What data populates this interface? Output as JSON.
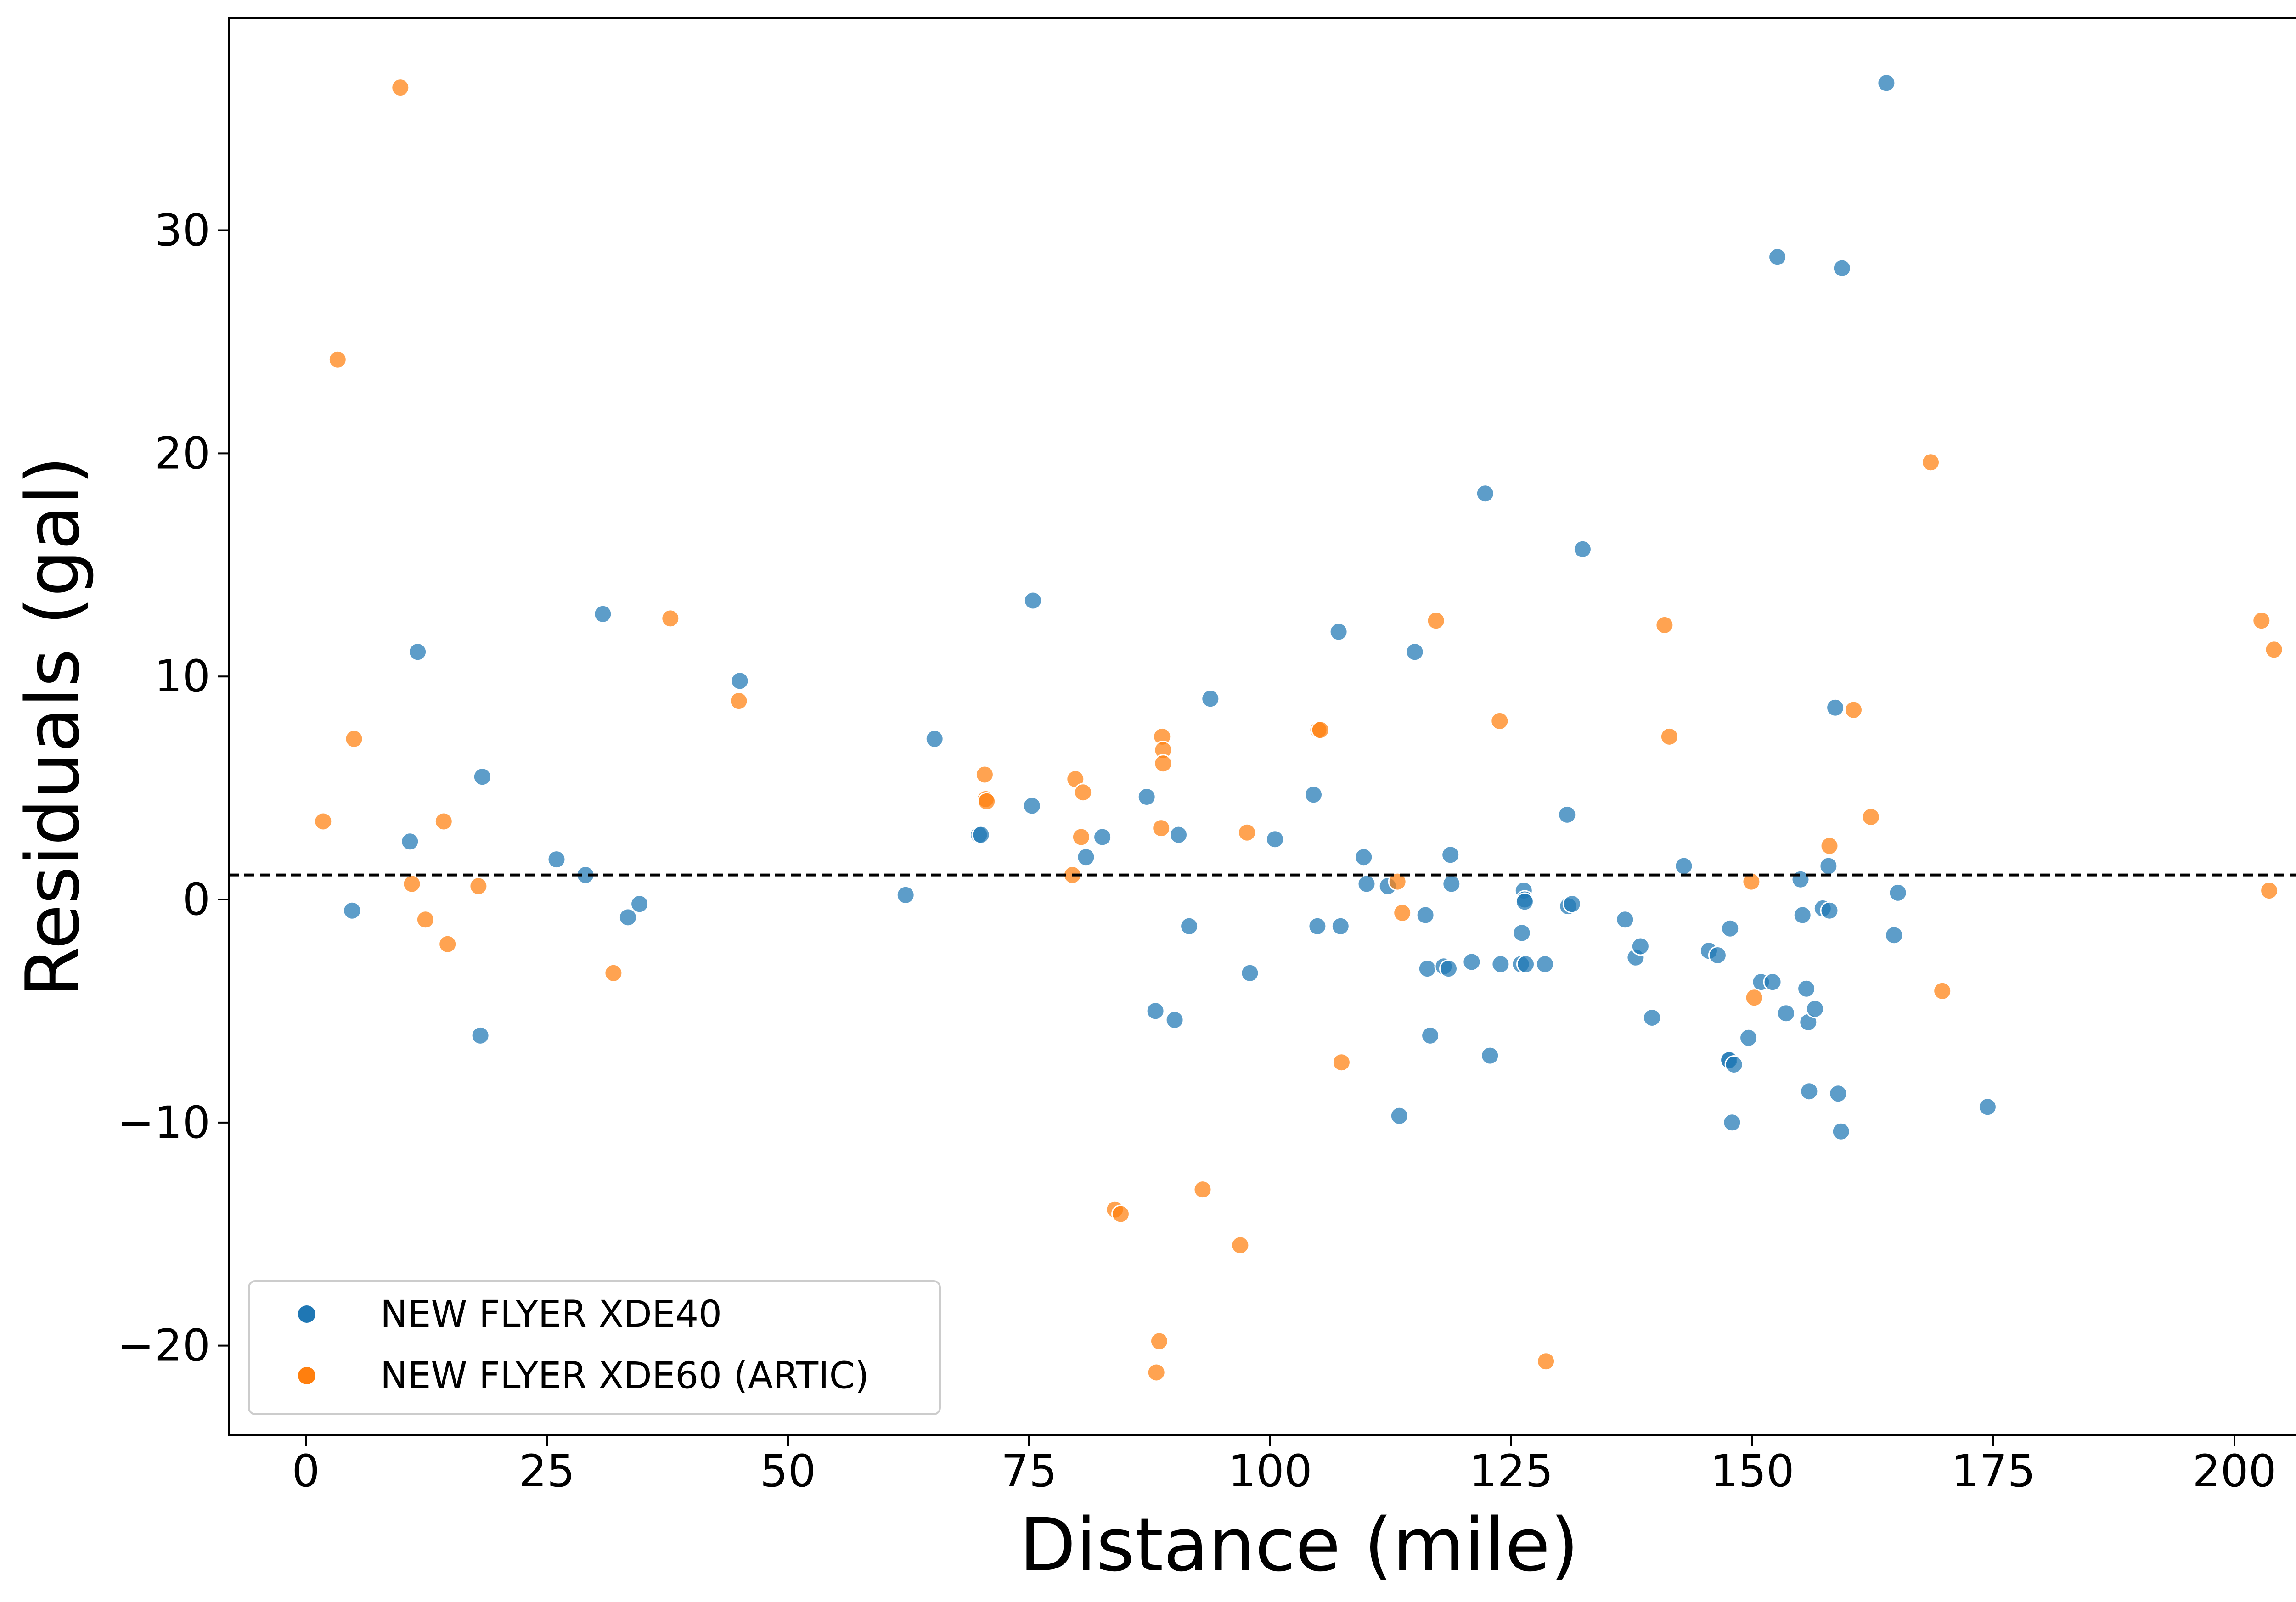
{
  "chart_data": {
    "type": "scatter",
    "xlabel": "Distance (mile)",
    "ylabel": "Residuals (gal)",
    "xlim": [
      -8,
      214
    ],
    "ylim": [
      -24,
      39.5
    ],
    "xticks": [
      0,
      25,
      50,
      75,
      100,
      125,
      150,
      175,
      200
    ],
    "xtick_labels": [
      "0",
      "25",
      "50",
      "75",
      "100",
      "125",
      "150",
      "175",
      "200"
    ],
    "yticks": [
      -20,
      -10,
      0,
      10,
      20,
      30
    ],
    "ytick_labels": [
      "−20",
      "−10",
      "0",
      "10",
      "20",
      "30"
    ],
    "reference_line": {
      "y": 1.1,
      "style": "dashed",
      "color": "#000000"
    },
    "grid": false,
    "legend_position": "lower-left",
    "series": [
      {
        "name": "NEW FLYER XDE40",
        "color": "#1f77b4",
        "points": [
          [
            4.8,
            -0.5
          ],
          [
            10.8,
            2.6
          ],
          [
            11.6,
            11.1
          ],
          [
            18.1,
            -6.1
          ],
          [
            18.3,
            5.5
          ],
          [
            26.0,
            1.8
          ],
          [
            29.0,
            1.1
          ],
          [
            30.8,
            12.8
          ],
          [
            33.4,
            -0.8
          ],
          [
            34.6,
            -0.2
          ],
          [
            45.0,
            9.8
          ],
          [
            62.2,
            0.2
          ],
          [
            65.2,
            7.2
          ],
          [
            69.8,
            2.9
          ],
          [
            70.0,
            2.9
          ],
          [
            75.3,
            4.2
          ],
          [
            75.4,
            13.4
          ],
          [
            80.9,
            1.9
          ],
          [
            82.6,
            2.8
          ],
          [
            87.2,
            4.6
          ],
          [
            88.1,
            -5.0
          ],
          [
            90.1,
            -5.4
          ],
          [
            90.5,
            2.9
          ],
          [
            91.6,
            -1.2
          ],
          [
            93.8,
            9.0
          ],
          [
            97.9,
            -3.3
          ],
          [
            100.5,
            2.7
          ],
          [
            104.5,
            4.7
          ],
          [
            104.9,
            -1.2
          ],
          [
            107.1,
            12.0
          ],
          [
            107.3,
            -1.2
          ],
          [
            109.7,
            1.9
          ],
          [
            110.0,
            0.7
          ],
          [
            112.2,
            0.6
          ],
          [
            113.4,
            -9.7
          ],
          [
            115.0,
            11.1
          ],
          [
            116.1,
            -0.7
          ],
          [
            116.3,
            -3.1
          ],
          [
            116.6,
            -6.1
          ],
          [
            118.0,
            -3.0
          ],
          [
            118.5,
            -3.1
          ],
          [
            118.7,
            2.0
          ],
          [
            118.8,
            0.7
          ],
          [
            120.9,
            -2.8
          ],
          [
            122.3,
            18.2
          ],
          [
            122.8,
            -7.0
          ],
          [
            123.9,
            -2.9
          ],
          [
            126.0,
            -2.9
          ],
          [
            126.1,
            -1.5
          ],
          [
            126.3,
            0.4
          ],
          [
            126.4,
            0.0
          ],
          [
            126.4,
            -0.1
          ],
          [
            126.5,
            -2.9
          ],
          [
            128.5,
            -2.9
          ],
          [
            130.8,
            3.8
          ],
          [
            130.9,
            -0.3
          ],
          [
            131.3,
            -0.2
          ],
          [
            132.4,
            15.7
          ],
          [
            136.8,
            -0.9
          ],
          [
            137.9,
            -2.6
          ],
          [
            138.4,
            -2.1
          ],
          [
            139.6,
            -5.3
          ],
          [
            142.9,
            1.5
          ],
          [
            145.5,
            -2.3
          ],
          [
            146.4,
            -2.5
          ],
          [
            147.5,
            -7.2
          ],
          [
            147.6,
            -7.2
          ],
          [
            147.7,
            -1.3
          ],
          [
            147.9,
            -10.0
          ],
          [
            148.1,
            -7.4
          ],
          [
            149.6,
            -6.2
          ],
          [
            150.9,
            -3.7
          ],
          [
            152.1,
            -3.7
          ],
          [
            152.6,
            28.8
          ],
          [
            153.5,
            -5.1
          ],
          [
            155.0,
            0.9
          ],
          [
            155.2,
            -0.7
          ],
          [
            155.6,
            -4.0
          ],
          [
            155.8,
            -5.5
          ],
          [
            155.9,
            -8.6
          ],
          [
            156.5,
            -4.9
          ],
          [
            157.3,
            -0.4
          ],
          [
            157.9,
            1.5
          ],
          [
            158.0,
            -0.5
          ],
          [
            158.6,
            8.6
          ],
          [
            158.9,
            -8.7
          ],
          [
            159.2,
            -10.4
          ],
          [
            159.3,
            28.3
          ],
          [
            163.9,
            36.6
          ],
          [
            164.7,
            -1.6
          ],
          [
            165.1,
            0.3
          ],
          [
            174.4,
            -9.3
          ]
        ]
      },
      {
        "name": "NEW FLYER XDE60 (ARTIC)",
        "color": "#ff7f0e",
        "points": [
          [
            1.8,
            3.5
          ],
          [
            3.3,
            24.2
          ],
          [
            5.0,
            7.2
          ],
          [
            9.8,
            36.4
          ],
          [
            11.0,
            0.7
          ],
          [
            12.4,
            -0.9
          ],
          [
            14.3,
            3.5
          ],
          [
            14.7,
            -2.0
          ],
          [
            17.9,
            0.6
          ],
          [
            31.9,
            -3.3
          ],
          [
            37.8,
            12.6
          ],
          [
            44.9,
            8.9
          ],
          [
            70.4,
            5.6
          ],
          [
            70.5,
            4.5
          ],
          [
            70.6,
            4.4
          ],
          [
            79.5,
            1.1
          ],
          [
            79.8,
            5.4
          ],
          [
            80.4,
            2.8
          ],
          [
            80.6,
            4.8
          ],
          [
            83.9,
            -13.9
          ],
          [
            84.5,
            -14.1
          ],
          [
            88.2,
            -21.2
          ],
          [
            88.5,
            -19.8
          ],
          [
            88.7,
            3.2
          ],
          [
            88.8,
            7.3
          ],
          [
            88.9,
            6.7
          ],
          [
            88.9,
            6.1
          ],
          [
            93.0,
            -13.0
          ],
          [
            96.9,
            -15.5
          ],
          [
            97.6,
            3.0
          ],
          [
            105.0,
            7.6
          ],
          [
            105.2,
            7.6
          ],
          [
            107.4,
            -7.3
          ],
          [
            113.2,
            0.8
          ],
          [
            113.7,
            -0.6
          ],
          [
            117.2,
            12.5
          ],
          [
            123.8,
            8.0
          ],
          [
            128.6,
            -20.7
          ],
          [
            140.9,
            12.3
          ],
          [
            141.4,
            7.3
          ],
          [
            149.9,
            0.8
          ],
          [
            150.2,
            -4.4
          ],
          [
            158.0,
            2.4
          ],
          [
            160.5,
            8.5
          ],
          [
            162.3,
            3.7
          ],
          [
            168.5,
            19.6
          ],
          [
            169.7,
            -4.1
          ],
          [
            202.8,
            12.5
          ],
          [
            203.6,
            0.4
          ],
          [
            204.1,
            11.2
          ]
        ]
      }
    ]
  }
}
